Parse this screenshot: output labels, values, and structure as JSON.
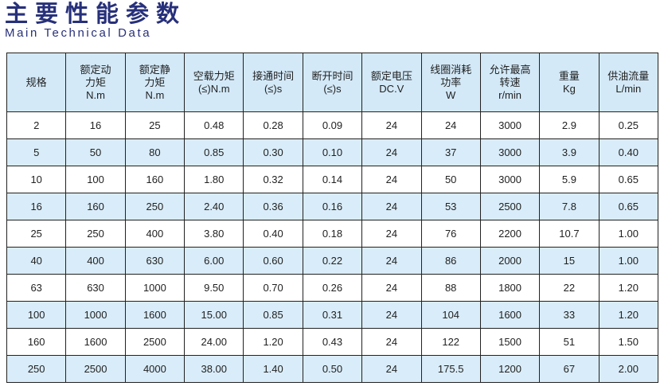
{
  "title": "主要性能参数",
  "subtitle": "Main Technical Data",
  "colors": {
    "title": "#27307a",
    "header_bg": "#d3e9f8",
    "alt_row_bg": "#d9ecf9"
  },
  "headers": [
    "规格",
    "额定动\n力矩\nN.m",
    "额定静\n力矩\nN.m",
    "空载力矩\n(≤)N.m",
    "接通时间\n(≤)s",
    "断开时间\n(≤)s",
    "额定电压\nDC.V",
    "线圈消耗\n功率\nW",
    "允许最高\n转速\nr/min",
    "重量\nKg",
    "供油流量\nL/min"
  ],
  "rows": [
    [
      "2",
      "16",
      "25",
      "0.48",
      "0.28",
      "0.09",
      "24",
      "24",
      "3000",
      "2.9",
      "0.25"
    ],
    [
      "5",
      "50",
      "80",
      "0.85",
      "0.30",
      "0.10",
      "24",
      "37",
      "3000",
      "3.9",
      "0.40"
    ],
    [
      "10",
      "100",
      "160",
      "1.80",
      "0.32",
      "0.14",
      "24",
      "50",
      "3000",
      "5.9",
      "0.65"
    ],
    [
      "16",
      "160",
      "250",
      "2.40",
      "0.36",
      "0.16",
      "24",
      "53",
      "2500",
      "7.8",
      "0.65"
    ],
    [
      "25",
      "250",
      "400",
      "3.80",
      "0.40",
      "0.18",
      "24",
      "76",
      "2200",
      "10.7",
      "1.00"
    ],
    [
      "40",
      "400",
      "630",
      "6.00",
      "0.60",
      "0.22",
      "24",
      "86",
      "2000",
      "15",
      "1.00"
    ],
    [
      "63",
      "630",
      "1000",
      "9.50",
      "0.70",
      "0.26",
      "24",
      "88",
      "1800",
      "22",
      "1.20"
    ],
    [
      "100",
      "1000",
      "1600",
      "15.00",
      "0.85",
      "0.31",
      "24",
      "104",
      "1600",
      "33",
      "1.20"
    ],
    [
      "160",
      "1600",
      "2500",
      "24.00",
      "1.20",
      "0.43",
      "24",
      "122",
      "1500",
      "51",
      "1.50"
    ],
    [
      "250",
      "2500",
      "4000",
      "38.00",
      "1.40",
      "0.50",
      "24",
      "175.5",
      "1200",
      "67",
      "2.00"
    ]
  ]
}
